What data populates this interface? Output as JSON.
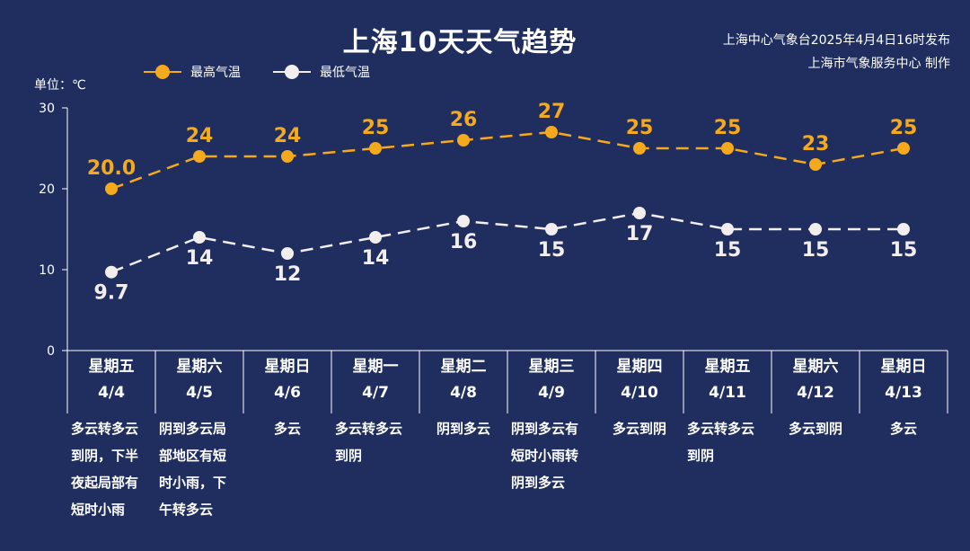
{
  "header": {
    "title": "上海10天天气趋势",
    "source_line1": "上海中心气象台2025年4月4日16时发布",
    "source_line2": "上海市气象服务中心 制作",
    "unit": "单位：℃"
  },
  "colors": {
    "background": "#1f2e5f",
    "high": "#f5a91c",
    "low": "#f2eeee",
    "axis": "#ffffff"
  },
  "chart_data": {
    "type": "line",
    "ylim": [
      0,
      30
    ],
    "yticks": [
      0,
      10,
      20,
      30
    ],
    "categories": [
      "4/4",
      "4/5",
      "4/6",
      "4/7",
      "4/8",
      "4/9",
      "4/10",
      "4/11",
      "4/12",
      "4/13"
    ],
    "weekdays": [
      "星期五",
      "星期六",
      "星期日",
      "星期一",
      "星期二",
      "星期三",
      "星期四",
      "星期五",
      "星期六",
      "星期日"
    ],
    "series": [
      {
        "name": "最高气温",
        "values": [
          20.0,
          24,
          24,
          25,
          26,
          27,
          25,
          25,
          23,
          25
        ],
        "labels": [
          "20.0",
          "24",
          "24",
          "25",
          "26",
          "27",
          "25",
          "25",
          "23",
          "25"
        ]
      },
      {
        "name": "最低气温",
        "values": [
          9.7,
          14,
          12,
          14,
          16,
          15,
          17,
          15,
          15,
          15
        ],
        "labels": [
          "9.7",
          "14",
          "12",
          "14",
          "16",
          "15",
          "17",
          "15",
          "15",
          "15"
        ]
      }
    ],
    "descriptions": [
      [
        "多云转多云",
        "到阴，下半",
        "夜起局部有",
        "短时小雨"
      ],
      [
        "阴到多云局",
        "部地区有短",
        "时小雨，下",
        "午转多云"
      ],
      [
        "多云"
      ],
      [
        "多云转多云",
        "到阴"
      ],
      [
        "阴到多云"
      ],
      [
        "阴到多云有",
        "短时小雨转",
        "阴到多云"
      ],
      [
        "多云到阴"
      ],
      [
        "多云转多云",
        "到阴"
      ],
      [
        "多云到阴"
      ],
      [
        "多云"
      ]
    ]
  }
}
